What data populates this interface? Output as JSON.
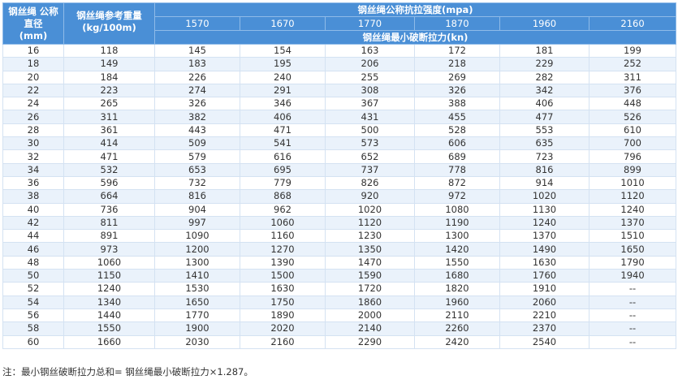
{
  "header": {
    "diameter": [
      "钢丝绳 公称",
      "直径",
      "(mm)"
    ],
    "weight": [
      "钢丝绳参考重量",
      "(kg/100m)"
    ],
    "strength": "钢丝绳公称抗拉强度(mpa)",
    "grades": [
      "1570",
      "1670",
      "1770",
      "1870",
      "1960",
      "2160"
    ],
    "force": "钢丝绳最小破断拉力(kn)"
  },
  "table": {
    "rows": [
      [
        "16",
        "118",
        "145",
        "154",
        "163",
        "172",
        "181",
        "199"
      ],
      [
        "18",
        "149",
        "183",
        "195",
        "206",
        "218",
        "229",
        "252"
      ],
      [
        "20",
        "184",
        "226",
        "240",
        "255",
        "269",
        "282",
        "311"
      ],
      [
        "22",
        "223",
        "274",
        "291",
        "308",
        "326",
        "342",
        "376"
      ],
      [
        "24",
        "265",
        "326",
        "346",
        "367",
        "388",
        "406",
        "448"
      ],
      [
        "26",
        "311",
        "382",
        "406",
        "431",
        "455",
        "477",
        "526"
      ],
      [
        "28",
        "361",
        "443",
        "471",
        "500",
        "528",
        "553",
        "610"
      ],
      [
        "30",
        "414",
        "509",
        "541",
        "573",
        "606",
        "635",
        "700"
      ],
      [
        "32",
        "471",
        "579",
        "616",
        "652",
        "689",
        "723",
        "796"
      ],
      [
        "34",
        "532",
        "653",
        "695",
        "737",
        "778",
        "816",
        "899"
      ],
      [
        "36",
        "596",
        "732",
        "779",
        "826",
        "872",
        "914",
        "1010"
      ],
      [
        "38",
        "664",
        "816",
        "868",
        "920",
        "972",
        "1020",
        "1120"
      ],
      [
        "40",
        "736",
        "904",
        "962",
        "1020",
        "1080",
        "1130",
        "1240"
      ],
      [
        "42",
        "811",
        "997",
        "1060",
        "1120",
        "1190",
        "1240",
        "1370"
      ],
      [
        "44",
        "891",
        "1090",
        "1160",
        "1230",
        "1300",
        "1370",
        "1510"
      ],
      [
        "46",
        "973",
        "1200",
        "1270",
        "1350",
        "1420",
        "1490",
        "1650"
      ],
      [
        "48",
        "1060",
        "1300",
        "1390",
        "1470",
        "1550",
        "1630",
        "1790"
      ],
      [
        "50",
        "1150",
        "1410",
        "1500",
        "1590",
        "1680",
        "1760",
        "1940"
      ],
      [
        "52",
        "1240",
        "1530",
        "1630",
        "1720",
        "1820",
        "1910",
        "--"
      ],
      [
        "54",
        "1340",
        "1650",
        "1750",
        "1860",
        "1960",
        "2060",
        "--"
      ],
      [
        "56",
        "1440",
        "1770",
        "1890",
        "2000",
        "2110",
        "2210",
        "--"
      ],
      [
        "58",
        "1550",
        "1900",
        "2020",
        "2140",
        "2260",
        "2370",
        "--"
      ],
      [
        "60",
        "1660",
        "2030",
        "2160",
        "2290",
        "2420",
        "2540",
        "--"
      ]
    ]
  },
  "note": "注：最小钢丝破断拉力总和= 钢丝绳最小破断拉力×1.287。"
}
